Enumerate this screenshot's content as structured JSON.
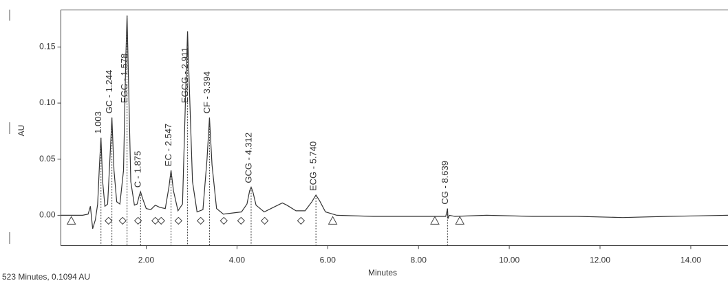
{
  "chart_data": {
    "type": "line",
    "y_label": "AU",
    "x_label": "Minutes",
    "status": "523 Minutes, 0.1094 AU",
    "color": "#333333",
    "xlim": [
      0.12,
      14.82
    ],
    "ylim": [
      -0.027,
      0.183
    ],
    "xticks": [
      {
        "value": 2,
        "label": "2.00"
      },
      {
        "value": 4,
        "label": "4.00"
      },
      {
        "value": 6,
        "label": "6.00"
      },
      {
        "value": 8,
        "label": "8.00"
      },
      {
        "value": 10,
        "label": "10.00"
      },
      {
        "value": 12,
        "label": "12.00"
      },
      {
        "value": 14,
        "label": "14.00"
      }
    ],
    "yticks": [
      {
        "value": 0,
        "label": "0.00"
      },
      {
        "value": 0.05,
        "label": "0.05"
      },
      {
        "value": 0.1,
        "label": "0.10"
      },
      {
        "value": 0.15,
        "label": "0.15"
      }
    ],
    "x": [
      0.12,
      0.6,
      0.72,
      0.77,
      0.82,
      0.88,
      0.93,
      0.97,
      1.003,
      1.04,
      1.09,
      1.15,
      1.2,
      1.244,
      1.29,
      1.35,
      1.42,
      1.5,
      1.55,
      1.578,
      1.61,
      1.66,
      1.74,
      1.8,
      1.85,
      1.875,
      1.92,
      2.0,
      2.1,
      2.2,
      2.3,
      2.42,
      2.5,
      2.547,
      2.6,
      2.7,
      2.8,
      2.87,
      2.911,
      2.95,
      3.02,
      3.12,
      3.25,
      3.34,
      3.394,
      3.45,
      3.55,
      3.7,
      3.9,
      4.1,
      4.22,
      4.28,
      4.312,
      4.35,
      4.42,
      4.6,
      4.8,
      5.0,
      5.1,
      5.3,
      5.5,
      5.65,
      5.74,
      5.82,
      5.95,
      6.2,
      7.0,
      8.0,
      8.6,
      8.63,
      8.639,
      8.65,
      8.68,
      8.8,
      9.5,
      10.5,
      11.5,
      12.5,
      13.5,
      14.82
    ],
    "values": [
      0.0,
      0.0,
      0.001,
      0.008,
      -0.012,
      -0.004,
      0.01,
      0.045,
      0.069,
      0.03,
      0.008,
      0.01,
      0.05,
      0.087,
      0.04,
      0.012,
      0.01,
      0.04,
      0.14,
      0.178,
      0.12,
      0.03,
      0.009,
      0.01,
      0.018,
      0.021,
      0.015,
      0.006,
      0.005,
      0.009,
      0.007,
      0.006,
      0.025,
      0.04,
      0.022,
      0.004,
      0.01,
      0.11,
      0.164,
      0.115,
      0.03,
      0.003,
      0.005,
      0.05,
      0.087,
      0.045,
      0.006,
      0.001,
      0.002,
      0.003,
      0.01,
      0.022,
      0.025,
      0.021,
      0.009,
      0.003,
      0.007,
      0.011,
      0.009,
      0.004,
      0.004,
      0.012,
      0.018,
      0.013,
      0.003,
      0.0,
      -0.001,
      -0.001,
      -0.001,
      0.004,
      0.006,
      -0.003,
      0.0,
      -0.001,
      0.0,
      -0.001,
      -0.001,
      -0.002,
      -0.001,
      0.0
    ],
    "peaks": [
      {
        "label": "1.003",
        "x": 1.003,
        "y": 0.069
      },
      {
        "label": "GC - 1.244",
        "x": 1.244,
        "y": 0.087
      },
      {
        "label": "EGC - 1.578",
        "x": 1.578,
        "y": 0.178
      },
      {
        "label": "C - 1.875",
        "x": 1.875,
        "y": 0.021
      },
      {
        "label": "EC - 2.547",
        "x": 2.547,
        "y": 0.04
      },
      {
        "label": "EGCG - 2.911",
        "x": 2.911,
        "y": 0.164
      },
      {
        "label": "CF - 3.394",
        "x": 3.394,
        "y": 0.087
      },
      {
        "label": "GCG - 4.312",
        "x": 4.312,
        "y": 0.025
      },
      {
        "label": "ECG - 5.740",
        "x": 5.74,
        "y": 0.018
      },
      {
        "label": "CG - 8.639",
        "x": 8.639,
        "y": 0.006
      }
    ],
    "event_markers": {
      "triangle": [
        0.35,
        6.11,
        8.36,
        8.91
      ],
      "diamond": [
        1.17,
        1.48,
        1.82,
        2.2,
        2.33,
        2.71,
        3.2,
        3.71,
        4.09,
        4.61,
        5.41
      ]
    }
  }
}
